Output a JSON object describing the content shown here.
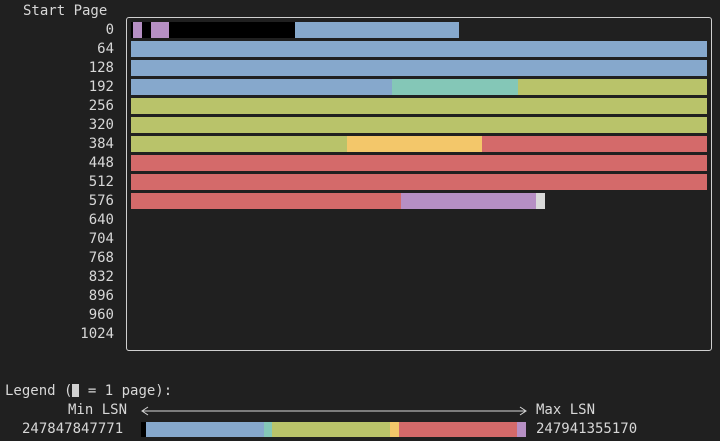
{
  "header": {
    "title": "Start Page"
  },
  "rows": [
    {
      "label": "0",
      "segments": [
        [
          "#000000",
          1
        ],
        [
          "#b68fc4",
          5
        ],
        [
          "#000000",
          5
        ],
        [
          "#b68fc4",
          10
        ],
        [
          "#000000",
          70
        ],
        [
          "#86a8cc",
          91
        ]
      ]
    },
    {
      "label": "64",
      "segments": [
        [
          "#86a8cc",
          320
        ]
      ]
    },
    {
      "label": "128",
      "segments": [
        [
          "#86a8cc",
          320
        ]
      ]
    },
    {
      "label": "192",
      "segments": [
        [
          "#86a8cc",
          145
        ],
        [
          "#84c7b7",
          70
        ],
        [
          "#b9c36a",
          105
        ]
      ]
    },
    {
      "label": "256",
      "segments": [
        [
          "#b9c36a",
          320
        ]
      ]
    },
    {
      "label": "320",
      "segments": [
        [
          "#b9c36a",
          320
        ]
      ]
    },
    {
      "label": "384",
      "segments": [
        [
          "#b9c36a",
          120
        ],
        [
          "#f3c76a",
          75
        ],
        [
          "#d46a6a",
          125
        ]
      ]
    },
    {
      "label": "448",
      "segments": [
        [
          "#d46a6a",
          320
        ]
      ]
    },
    {
      "label": "512",
      "segments": [
        [
          "#d46a6a",
          320
        ]
      ]
    },
    {
      "label": "576",
      "segments": [
        [
          "#d46a6a",
          150
        ],
        [
          "#b68fc4",
          75
        ],
        [
          "#d9d9d9",
          5
        ]
      ]
    },
    {
      "label": "640",
      "segments": []
    },
    {
      "label": "704",
      "segments": []
    },
    {
      "label": "768",
      "segments": []
    },
    {
      "label": "832",
      "segments": []
    },
    {
      "label": "896",
      "segments": []
    },
    {
      "label": "960",
      "segments": []
    },
    {
      "label": "1024",
      "segments": []
    }
  ],
  "legend": {
    "prefix": "Legend (",
    "suffix": " = 1 page):",
    "min_label": "Min LSN",
    "max_label": "Max LSN",
    "min_value": "247847847771",
    "max_value": "247941355170",
    "gradient": [
      [
        "#000000",
        5
      ],
      [
        "#86a8cc",
        117
      ],
      [
        "#84c7b7",
        8
      ],
      [
        "#b9c36a",
        117
      ],
      [
        "#f3c76a",
        9
      ],
      [
        "#d46a6a",
        117
      ],
      [
        "#b68fc4",
        9
      ]
    ]
  },
  "colors": {
    "background": "#202020",
    "text": "#d7d7d7",
    "blue": "#86a8cc",
    "teal": "#84c7b7",
    "olive": "#b9c36a",
    "orange": "#f3c76a",
    "red": "#d46a6a",
    "purple": "#b68fc4"
  }
}
